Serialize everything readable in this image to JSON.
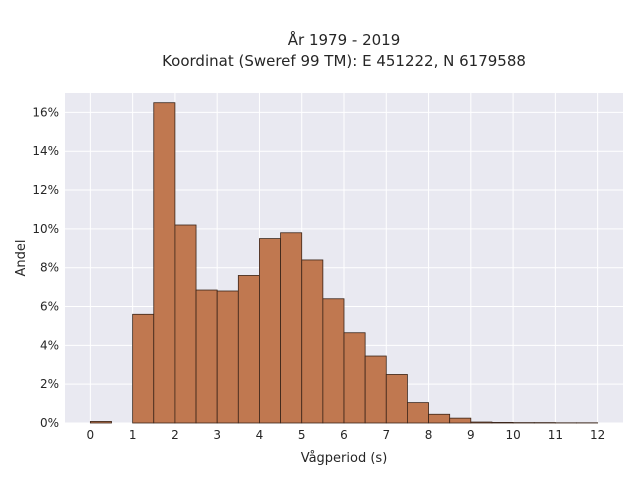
{
  "chart_data": {
    "type": "bar",
    "title": "År 1979 - 2019",
    "subtitle": "Koordinat (Sweref 99 TM): E 451222, N 6179588",
    "xlabel": "Vågperiod (s)",
    "ylabel": "Andel",
    "xlim": [
      -0.6,
      12.6
    ],
    "ylim": [
      0,
      17.0
    ],
    "x_ticks": [
      0,
      1,
      2,
      3,
      4,
      5,
      6,
      7,
      8,
      9,
      10,
      11,
      12
    ],
    "y_ticks": [
      0,
      2,
      4,
      6,
      8,
      10,
      12,
      14,
      16
    ],
    "y_tick_labels": [
      "0%",
      "2%",
      "4%",
      "6%",
      "8%",
      "10%",
      "12%",
      "14%",
      "16%"
    ],
    "bin_width": 0.5,
    "bins": [
      {
        "x0": 0.0,
        "x1": 0.5,
        "value": 0.08
      },
      {
        "x0": 0.5,
        "x1": 1.0,
        "value": 0.0
      },
      {
        "x0": 1.0,
        "x1": 1.5,
        "value": 5.6
      },
      {
        "x0": 1.5,
        "x1": 2.0,
        "value": 16.5
      },
      {
        "x0": 2.0,
        "x1": 2.5,
        "value": 10.2
      },
      {
        "x0": 2.5,
        "x1": 3.0,
        "value": 6.85
      },
      {
        "x0": 3.0,
        "x1": 3.5,
        "value": 6.8
      },
      {
        "x0": 3.5,
        "x1": 4.0,
        "value": 7.6
      },
      {
        "x0": 4.0,
        "x1": 4.5,
        "value": 9.5
      },
      {
        "x0": 4.5,
        "x1": 5.0,
        "value": 9.8
      },
      {
        "x0": 5.0,
        "x1": 5.5,
        "value": 8.4
      },
      {
        "x0": 5.5,
        "x1": 6.0,
        "value": 6.4
      },
      {
        "x0": 6.0,
        "x1": 6.5,
        "value": 4.65
      },
      {
        "x0": 6.5,
        "x1": 7.0,
        "value": 3.45
      },
      {
        "x0": 7.0,
        "x1": 7.5,
        "value": 2.5
      },
      {
        "x0": 7.5,
        "x1": 8.0,
        "value": 1.05
      },
      {
        "x0": 8.0,
        "x1": 8.5,
        "value": 0.45
      },
      {
        "x0": 8.5,
        "x1": 9.0,
        "value": 0.25
      },
      {
        "x0": 9.0,
        "x1": 9.5,
        "value": 0.05
      },
      {
        "x0": 9.5,
        "x1": 10.0,
        "value": 0.03
      },
      {
        "x0": 10.0,
        "x1": 10.5,
        "value": 0.02
      },
      {
        "x0": 10.5,
        "x1": 11.0,
        "value": 0.02
      },
      {
        "x0": 11.0,
        "x1": 11.5,
        "value": 0.01
      },
      {
        "x0": 11.5,
        "x1": 12.0,
        "value": 0.01
      }
    ],
    "grid": true,
    "colors": {
      "bar_fill": "#c07850",
      "bar_edge": "#3a2418",
      "plot_background": "#e9e9f1",
      "grid": "#ffffff",
      "text": "#262626"
    }
  }
}
